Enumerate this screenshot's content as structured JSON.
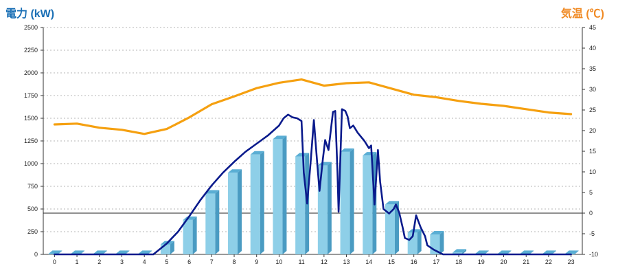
{
  "chart_data": {
    "type": "bar",
    "left_axis_title": "電力 (kW)",
    "right_axis_title": "気温 (℃)",
    "categories": [
      "0",
      "1",
      "2",
      "3",
      "4",
      "5",
      "6",
      "7",
      "8",
      "9",
      "10",
      "11",
      "12",
      "13",
      "14",
      "15",
      "16",
      "17",
      "18",
      "19",
      "20",
      "21",
      "22",
      "23"
    ],
    "left_ylim": [
      0,
      2500
    ],
    "left_ticks": [
      0,
      250,
      500,
      750,
      1000,
      1250,
      1500,
      1750,
      2000,
      2250,
      2500
    ],
    "right_ylim": [
      -10,
      45
    ],
    "right_ticks": [
      -10,
      -5,
      0,
      5,
      10,
      15,
      20,
      25,
      30,
      35,
      40,
      45
    ],
    "grid": true,
    "colors": {
      "bar": "#8ecfe8",
      "bar_side": "#4a9bc2",
      "bar_top": "#5aaed4",
      "power_line": "#0a1a8c",
      "temp_line": "#f5a010",
      "left_title": "#1a6fb5",
      "right_title": "#f08a24"
    },
    "series": [
      {
        "kind": "bar",
        "axis": "left",
        "values": [
          5,
          5,
          5,
          5,
          5,
          110,
          380,
          670,
          900,
          1100,
          1270,
          1080,
          980,
          1130,
          1090,
          550,
          240,
          220,
          20,
          5,
          5,
          5,
          5,
          5
        ]
      },
      {
        "kind": "line",
        "axis": "left",
        "points": [
          [
            0,
            0
          ],
          [
            1,
            0
          ],
          [
            2,
            0
          ],
          [
            3,
            0
          ],
          [
            4,
            0
          ],
          [
            4.4,
            0
          ],
          [
            5,
            120
          ],
          [
            5.5,
            250
          ],
          [
            6,
            420
          ],
          [
            6.5,
            600
          ],
          [
            7,
            760
          ],
          [
            7.5,
            900
          ],
          [
            8,
            1020
          ],
          [
            8.5,
            1130
          ],
          [
            9,
            1220
          ],
          [
            9.5,
            1310
          ],
          [
            10,
            1420
          ],
          [
            10.2,
            1500
          ],
          [
            10.4,
            1540
          ],
          [
            10.6,
            1510
          ],
          [
            10.8,
            1500
          ],
          [
            11,
            1470
          ],
          [
            11.1,
            900
          ],
          [
            11.25,
            560
          ],
          [
            11.4,
            1000
          ],
          [
            11.55,
            1480
          ],
          [
            11.7,
            1000
          ],
          [
            11.8,
            700
          ],
          [
            11.95,
            1050
          ],
          [
            12.05,
            1260
          ],
          [
            12.2,
            1150
          ],
          [
            12.4,
            1570
          ],
          [
            12.5,
            1580
          ],
          [
            12.6,
            900
          ],
          [
            12.65,
            470
          ],
          [
            12.8,
            1600
          ],
          [
            12.95,
            1580
          ],
          [
            13.05,
            1520
          ],
          [
            13.15,
            1390
          ],
          [
            13.3,
            1420
          ],
          [
            13.5,
            1340
          ],
          [
            13.8,
            1250
          ],
          [
            14,
            1170
          ],
          [
            14.1,
            1200
          ],
          [
            14.25,
            550
          ],
          [
            14.4,
            1150
          ],
          [
            14.5,
            800
          ],
          [
            14.65,
            500
          ],
          [
            14.9,
            450
          ],
          [
            15.1,
            500
          ],
          [
            15.2,
            550
          ],
          [
            15.35,
            460
          ],
          [
            15.5,
            300
          ],
          [
            15.6,
            180
          ],
          [
            15.8,
            160
          ],
          [
            15.95,
            200
          ],
          [
            16.1,
            430
          ],
          [
            16.3,
            300
          ],
          [
            16.5,
            200
          ],
          [
            16.6,
            100
          ],
          [
            16.9,
            50
          ],
          [
            17.3,
            0
          ],
          [
            18,
            0
          ],
          [
            19,
            0
          ],
          [
            20,
            0
          ],
          [
            21,
            0
          ],
          [
            22,
            0
          ],
          [
            23,
            0
          ]
        ]
      },
      {
        "kind": "line",
        "axis": "right",
        "points": [
          [
            0,
            21.5
          ],
          [
            1,
            21.7
          ],
          [
            2,
            20.7
          ],
          [
            3,
            20.2
          ],
          [
            4,
            19.2
          ],
          [
            5,
            20.4
          ],
          [
            6,
            23.2
          ],
          [
            7,
            26.4
          ],
          [
            8,
            28.3
          ],
          [
            9,
            30.3
          ],
          [
            10,
            31.6
          ],
          [
            11,
            32.4
          ],
          [
            12,
            30.9
          ],
          [
            13,
            31.5
          ],
          [
            14,
            31.7
          ],
          [
            15,
            30.2
          ],
          [
            16,
            28.7
          ],
          [
            17,
            28.1
          ],
          [
            18,
            27.2
          ],
          [
            19,
            26.5
          ],
          [
            20,
            26.0
          ],
          [
            21,
            25.2
          ],
          [
            22,
            24.4
          ],
          [
            23,
            24.0
          ]
        ]
      }
    ]
  }
}
